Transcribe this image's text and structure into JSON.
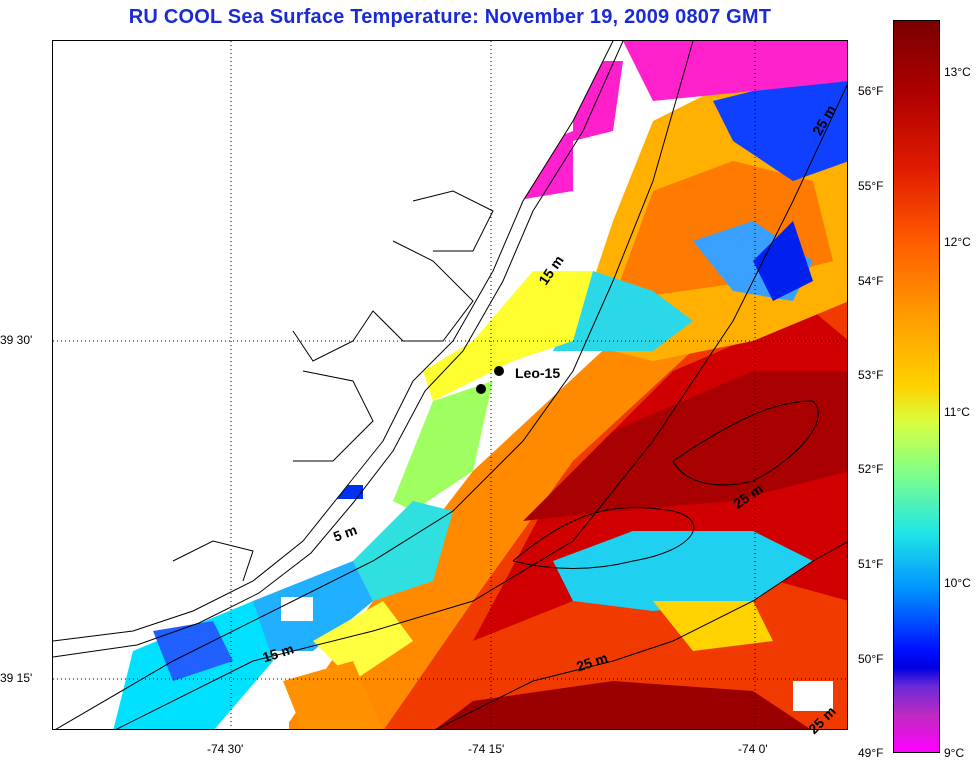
{
  "title": "RU COOL  Sea Surface Temperature:  November 19, 2009 0807 GMT",
  "axes": {
    "lat_labels": [
      "39 30'",
      "39 15'"
    ],
    "lon_labels": [
      "-74 30'",
      "-74 15'",
      "-74 0'"
    ]
  },
  "colorbar": {
    "celsius": [
      "13°C",
      "12°C",
      "11°C",
      "10°C",
      "9°C"
    ],
    "fahrenheit": [
      "56°F",
      "55°F",
      "54°F",
      "53°F",
      "52°F",
      "51°F",
      "50°F",
      "49°F"
    ]
  },
  "station": {
    "label": "Leo-15"
  },
  "depth_labels": [
    "15 m",
    "5 m",
    "15 m",
    "25 m",
    "25 m",
    "25 m",
    "25 m"
  ],
  "colors": {
    "title": "#1a2bd6"
  }
}
